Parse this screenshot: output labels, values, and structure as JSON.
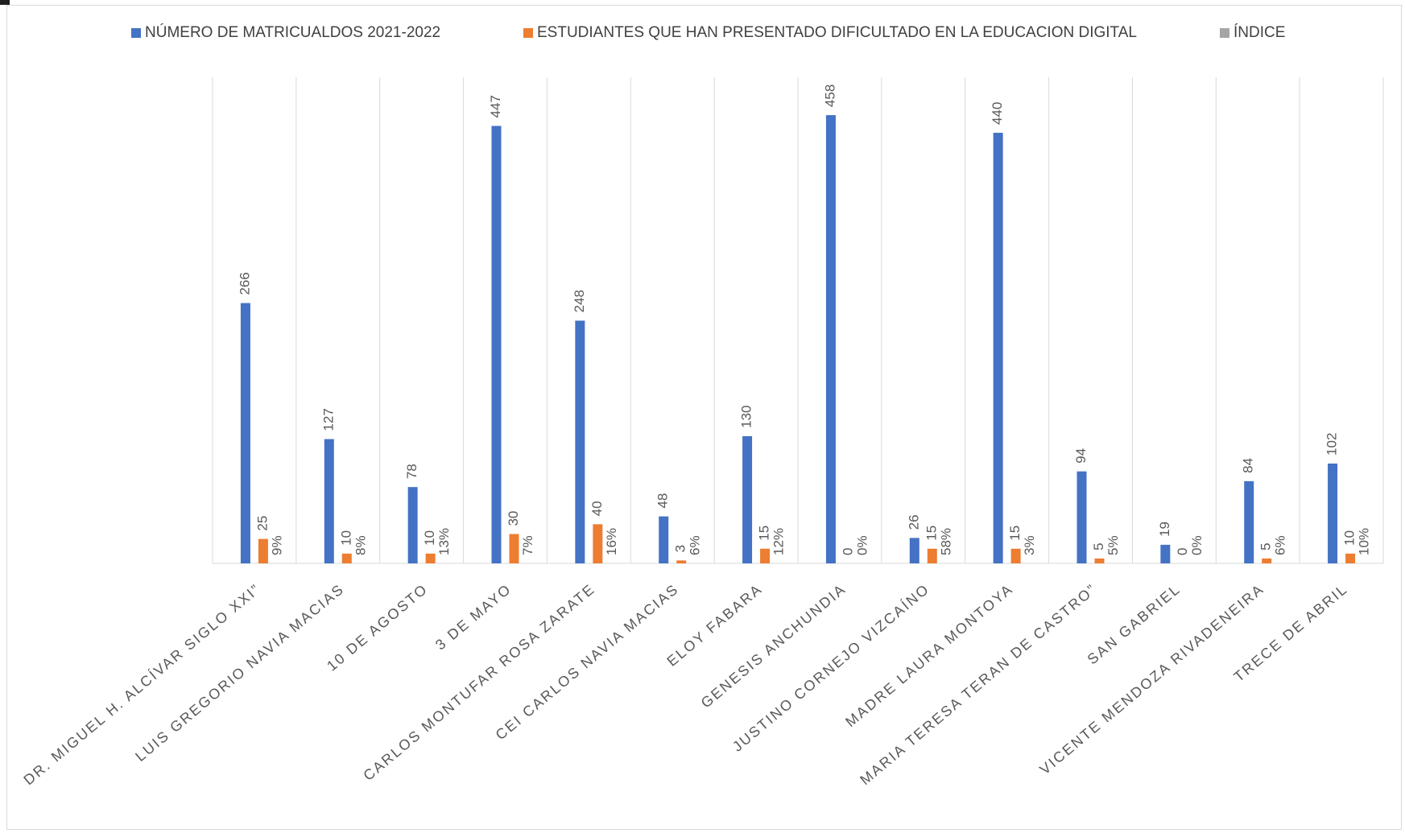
{
  "chart_data": {
    "type": "bar",
    "categories": [
      "DR. MIGUEL H. ALCÍVAR SIGLO XXI”",
      "LUIS GREGORIO NAVIA MACIAS",
      "10 DE AGOSTO",
      "3 DE MAYO",
      "CARLOS MONTUFAR ROSA ZARATE",
      "CEI CARLOS NAVIA MACIAS",
      "ELOY FABARA",
      "GENESIS ANCHUNDIA",
      "JUSTINO CORNEJO VIZCAÍNO",
      "MADRE LAURA MONTOYA",
      "MARIA TERESA TERAN DE CASTRO”",
      "SAN GABRIEL",
      "VICENTE MENDOZA RIVADENEIRA",
      "TRECE DE ABRIL"
    ],
    "series": [
      {
        "name": "NÚMERO DE MATRICUALDOS 2021-2022",
        "color": "#4472c4",
        "values": [
          266,
          127,
          78,
          447,
          248,
          48,
          130,
          458,
          26,
          440,
          94,
          19,
          84,
          102
        ],
        "labels": [
          "266",
          "127",
          "78",
          "447",
          "248",
          "48",
          "130",
          "458",
          "26",
          "440",
          "94",
          "19",
          "84",
          "102"
        ]
      },
      {
        "name": "ESTUDIANTES QUE HAN PRESENTADO DIFICULTADO EN LA EDUCACION DIGITAL",
        "color": "#ed7d31",
        "values": [
          25,
          10,
          10,
          30,
          40,
          3,
          15,
          0,
          15,
          15,
          5,
          0,
          5,
          10
        ],
        "labels": [
          "25",
          "10",
          "10",
          "30",
          "40",
          "3",
          "15",
          "0",
          "15",
          "15",
          "5",
          "0",
          "5",
          "10"
        ]
      },
      {
        "name": "ÍNDICE",
        "color": "#a5a5a5",
        "values": [
          0.09,
          0.08,
          0.13,
          0.07,
          0.16,
          0.06,
          0.12,
          0,
          0.58,
          0.03,
          0.05,
          0,
          0.06,
          0.1
        ],
        "labels": [
          "9%",
          "8%",
          "13%",
          "7%",
          "16%",
          "6%",
          "12%",
          "0%",
          "58%",
          "3%",
          "5%",
          "0%",
          "6%",
          "10%"
        ]
      }
    ],
    "ylim": [
      0,
      500
    ],
    "grid": "vertical-category-separators",
    "legend_position": "top",
    "title": "",
    "xlabel": "",
    "ylabel": ""
  }
}
